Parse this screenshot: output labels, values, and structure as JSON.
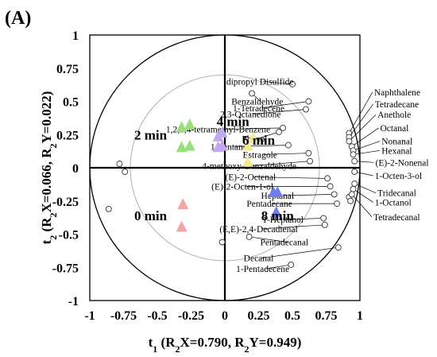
{
  "panel_label": "(A)",
  "chart_data": {
    "type": "scatter",
    "subtype": "pls-da correlation loadings plot",
    "xlabel": {
      "main": "t",
      "sub": "1",
      "rest": " (R",
      "sub2": "2",
      "rest2": "X=0.790, R",
      "sub3": "2",
      "rest3": "Y=0.949)"
    },
    "ylabel": {
      "main": "t",
      "sub": "2",
      "rest": " (R",
      "sub2": "2",
      "rest2": "X=0.066, R",
      "sub3": "2",
      "rest3": "Y=0.022)"
    },
    "xlim": [
      -1,
      1
    ],
    "ylim": [
      -1,
      1
    ],
    "x_ticks": [
      -1,
      -0.75,
      -0.5,
      -0.25,
      0,
      0.25,
      0.5,
      0.75,
      1
    ],
    "y_ticks": [
      1,
      0.75,
      0.5,
      0.25,
      0,
      -0.25,
      -0.5,
      -0.75,
      -1
    ],
    "x_tick_labels": [
      "-1",
      "-0.75",
      "-0.5",
      "-0.25",
      "0",
      "0.25",
      "0.5",
      "0.75",
      "1"
    ],
    "y_tick_labels": [
      "1",
      "0.75",
      "0.5",
      "0.25",
      "0",
      "-0.25",
      "-0.5",
      "-0.75",
      "-1"
    ],
    "ellipses": [
      {
        "radius": 1.0
      },
      {
        "radius": 0.7
      }
    ],
    "groups": [
      {
        "label": "0 min",
        "color": "#f4a6a6",
        "points": [
          [
            -0.31,
            -0.27
          ],
          [
            -0.32,
            -0.44
          ]
        ],
        "label_pos": [
          -0.55,
          -0.36
        ]
      },
      {
        "label": "2 min",
        "color": "#99e07a",
        "points": [
          [
            -0.26,
            0.33
          ],
          [
            -0.32,
            0.31
          ],
          [
            -0.26,
            0.17
          ],
          [
            -0.32,
            0.16
          ]
        ],
        "label_pos": [
          -0.55,
          0.25
        ]
      },
      {
        "label": "4 min",
        "color": "#c3a8ef",
        "points": [
          [
            -0.02,
            0.27
          ],
          [
            -0.05,
            0.24
          ],
          [
            -0.02,
            0.17
          ],
          [
            -0.05,
            0.16
          ]
        ],
        "label_pos": [
          0.06,
          0.35
        ]
      },
      {
        "label": "6 min",
        "color": "#f3ea8a",
        "points": [
          [
            0.21,
            0.23
          ],
          [
            0.17,
            0.17
          ],
          [
            0.17,
            0.05
          ]
        ],
        "label_pos": [
          0.25,
          0.21
        ]
      },
      {
        "label": "8 min",
        "color": "#6f7fe8",
        "points": [
          [
            0.36,
            -0.18
          ],
          [
            0.39,
            -0.18
          ],
          [
            0.38,
            -0.33
          ]
        ],
        "label_pos": [
          0.39,
          -0.36
        ]
      }
    ],
    "unlabeled_variables": [
      [
        -0.78,
        0.03
      ],
      [
        -0.74,
        -0.03
      ],
      [
        -0.86,
        -0.31
      ],
      [
        -0.02,
        -0.56
      ],
      [
        0.92,
        -0.22
      ],
      [
        0.93,
        -0.25
      ]
    ],
    "variables": [
      {
        "name": "dipropyl Disulfide",
        "x": 0.5,
        "y": 0.63,
        "lx": 0.26,
        "ly": 0.65
      },
      {
        "name": "Benzaldehyde",
        "x": 0.2,
        "y": 0.56,
        "lx": 0.24,
        "ly": 0.5
      },
      {
        "name": "1-Tetradecene",
        "x": 0.62,
        "y": 0.5,
        "lx": 0.25,
        "ly": 0.45
      },
      {
        "name": "2,3-Octanedione",
        "x": 0.6,
        "y": 0.44,
        "lx": 0.19,
        "ly": 0.405
      },
      {
        "name": "1,2,3,4-tetramethyl-Benzene",
        "x": 0.43,
        "y": 0.3,
        "lx": -0.05,
        "ly": 0.29
      },
      {
        "name": "Phenol",
        "x": 0.4,
        "y": 0.27,
        "lx": 0.22,
        "ly": 0.22
      },
      {
        "name": "1-Pentanol",
        "x": 0.47,
        "y": 0.17,
        "lx": 0.04,
        "ly": 0.16
      },
      {
        "name": "Estragole",
        "x": 0.62,
        "y": 0.11,
        "lx": 0.26,
        "ly": 0.1
      },
      {
        "name": "4-methoxy-Benzaldehyde",
        "x": 0.63,
        "y": 0.05,
        "lx": 0.18,
        "ly": 0.015
      },
      {
        "name": "(E)-2-Octenal",
        "x": 0.76,
        "y": -0.08,
        "lx": 0.19,
        "ly": -0.07
      },
      {
        "name": "(E)-2-Octen-1-ol",
        "x": 0.78,
        "y": -0.14,
        "lx": 0.13,
        "ly": -0.14
      },
      {
        "name": "Heptanal",
        "x": 0.81,
        "y": -0.2,
        "lx": 0.39,
        "ly": -0.21
      },
      {
        "name": "Pentadecane",
        "x": 0.83,
        "y": -0.27,
        "lx": 0.33,
        "ly": -0.27
      },
      {
        "name": "1-Heptanol",
        "x": 0.73,
        "y": -0.38,
        "lx": 0.43,
        "ly": -0.39
      },
      {
        "name": "(E,E)-2,4-Decadienal",
        "x": 0.74,
        "y": -0.43,
        "lx": 0.25,
        "ly": -0.46
      },
      {
        "name": "Pentadecanal",
        "x": 0.18,
        "y": -0.52,
        "lx": 0.44,
        "ly": -0.56
      },
      {
        "name": "Decanal",
        "x": 0.84,
        "y": -0.6,
        "lx": 0.25,
        "ly": -0.68
      },
      {
        "name": "1-Pentadecene",
        "x": 0.49,
        "y": -0.73,
        "lx": 0.28,
        "ly": -0.76
      },
      {
        "name": "Naphthalene",
        "x": 0.92,
        "y": 0.26,
        "lx": 1.105,
        "ly": 0.57
      },
      {
        "name": "Tetradecane",
        "x": 0.92,
        "y": 0.23,
        "lx": 1.11,
        "ly": 0.48
      },
      {
        "name": "Anethole",
        "x": 0.92,
        "y": 0.2,
        "lx": 1.13,
        "ly": 0.4
      },
      {
        "name": "Octanal",
        "x": 0.94,
        "y": 0.16,
        "lx": 1.15,
        "ly": 0.3
      },
      {
        "name": "Nonanal",
        "x": 0.95,
        "y": 0.13,
        "lx": 1.16,
        "ly": 0.2
      },
      {
        "name": "Hexanal",
        "x": 0.95,
        "y": 0.1,
        "lx": 1.16,
        "ly": 0.13
      },
      {
        "name": "(E)-2-Nonenal",
        "x": 0.96,
        "y": 0.05,
        "lx": 1.115,
        "ly": 0.04
      },
      {
        "name": "1-Octen-3-ol",
        "x": 0.96,
        "y": -0.03,
        "lx": 1.11,
        "ly": -0.06
      },
      {
        "name": "Tridecanal",
        "x": 0.96,
        "y": -0.12,
        "lx": 1.13,
        "ly": -0.19
      },
      {
        "name": "1-Octanol",
        "x": 0.95,
        "y": -0.16,
        "lx": 1.11,
        "ly": -0.26
      },
      {
        "name": "Tetradecanal",
        "x": 0.94,
        "y": -0.2,
        "lx": 1.1,
        "ly": -0.37
      }
    ]
  }
}
